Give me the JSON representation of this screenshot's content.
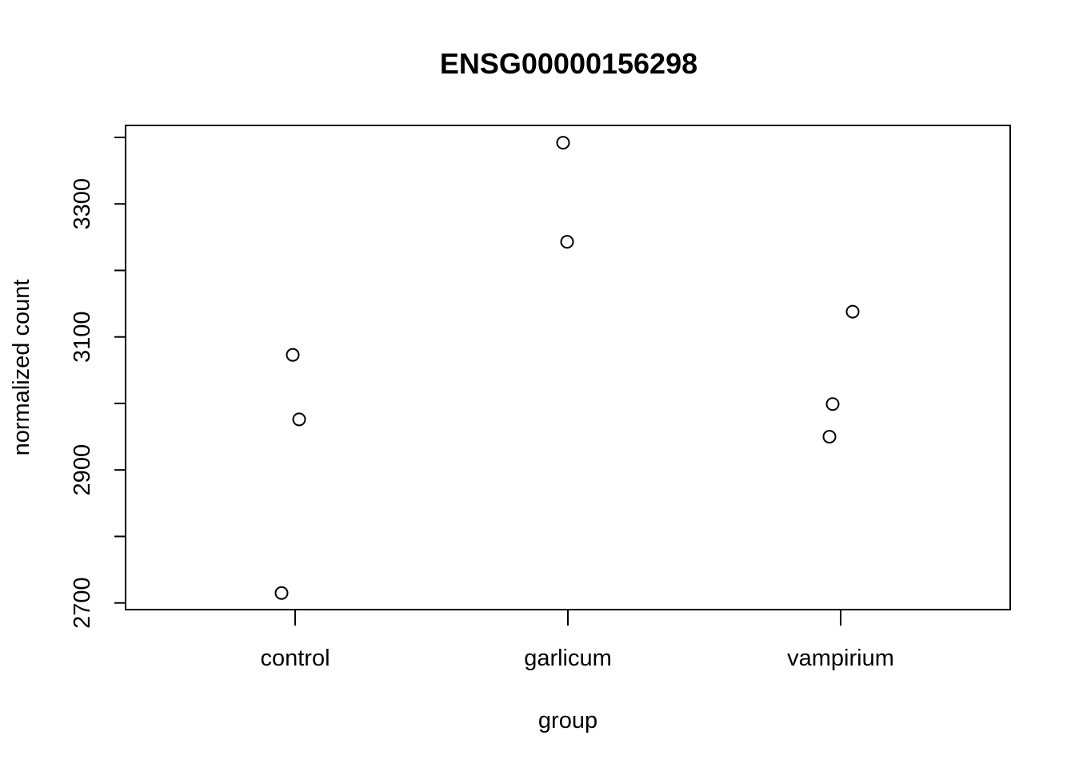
{
  "chart_data": {
    "type": "scatter",
    "title": "ENSG00000156298",
    "xlabel": "group",
    "ylabel": "normalized count",
    "categories": [
      "control",
      "garlicum",
      "vampirium"
    ],
    "points": [
      {
        "group": "control",
        "y": 2715
      },
      {
        "group": "control",
        "y": 2976
      },
      {
        "group": "control",
        "y": 3073
      },
      {
        "group": "garlicum",
        "y": 3243
      },
      {
        "group": "garlicum",
        "y": 3392
      },
      {
        "group": "vampirium",
        "y": 2950
      },
      {
        "group": "vampirium",
        "y": 2999
      },
      {
        "group": "vampirium",
        "y": 3138
      }
    ],
    "yticks": [
      2700,
      2800,
      2900,
      3000,
      3100,
      3200,
      3300,
      3400
    ],
    "ytick_labels": [
      "2700",
      "",
      "2900",
      "",
      "3100",
      "",
      "3300",
      ""
    ],
    "ylim": [
      2690,
      3418
    ],
    "grid": false,
    "legend": "none",
    "marker": "open-circle",
    "colors": {
      "ink": "#000000",
      "background": "#ffffff"
    }
  }
}
